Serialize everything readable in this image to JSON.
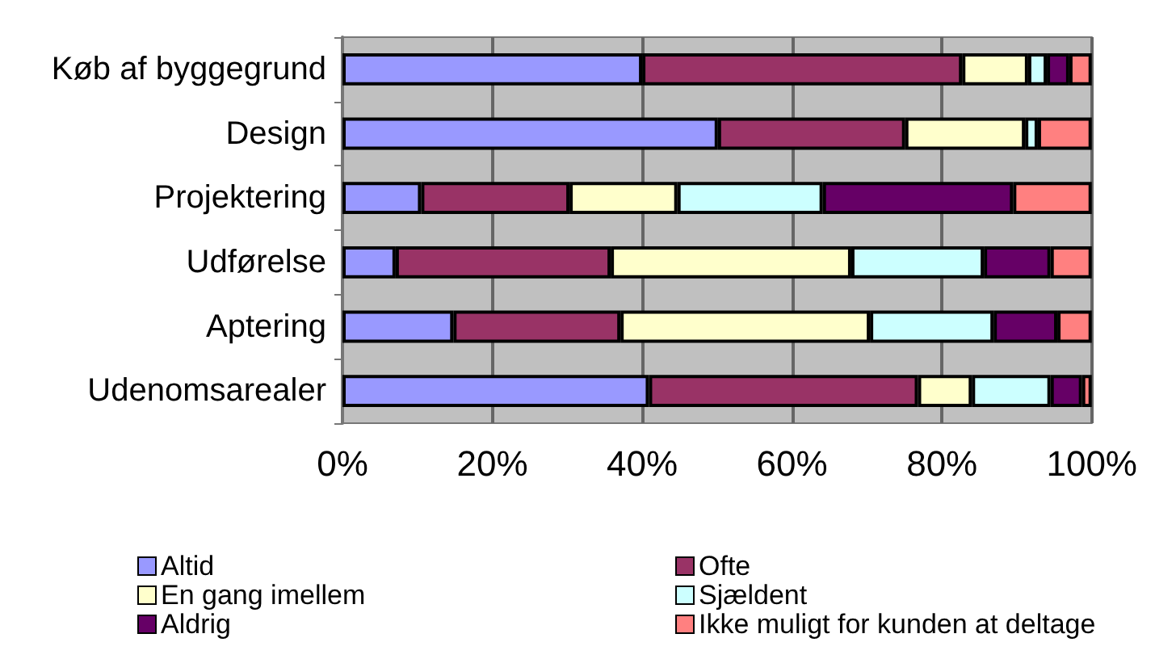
{
  "chart_data": {
    "type": "bar",
    "orientation": "horizontal",
    "stacked": true,
    "categories": [
      "Køb af byggegrund",
      "Design",
      "Projektering",
      "Udførelse",
      "Aptering",
      "Udenomsarealer"
    ],
    "series": [
      {
        "name": "Altid",
        "color": "#9999ff",
        "values": [
          40,
          50.1,
          10.5,
          7.1,
          14.8,
          40.9
        ]
      },
      {
        "name": "Ofte",
        "color": "#993366",
        "values": [
          42.7,
          25,
          19.8,
          28.7,
          22.3,
          35.9
        ]
      },
      {
        "name": "En gang imellem",
        "color": "#ffffcc",
        "values": [
          8.8,
          16,
          14.4,
          32.1,
          33.3,
          7.2
        ]
      },
      {
        "name": "Sjældent",
        "color": "#ccffff",
        "values": [
          2.5,
          1.7,
          19.4,
          17.7,
          16.5,
          10.5
        ]
      },
      {
        "name": "Aldrig",
        "color": "#660066",
        "values": [
          3,
          0,
          25.4,
          8.9,
          8.5,
          4.2
        ]
      },
      {
        "name": "Ikke muligt for kunden at deltage",
        "color": "#ff8080",
        "values": [
          3,
          7.2,
          10.5,
          5.5,
          4.6,
          1.3
        ]
      }
    ],
    "xlim": [
      0,
      100
    ],
    "xticks": [
      {
        "value": 0,
        "label": "0%"
      },
      {
        "value": 20,
        "label": "20%"
      },
      {
        "value": 40,
        "label": "40%"
      },
      {
        "value": 60,
        "label": "60%"
      },
      {
        "value": 80,
        "label": "80%"
      },
      {
        "value": 100,
        "label": "100%"
      }
    ],
    "grid": "x",
    "legend": "bottom"
  }
}
